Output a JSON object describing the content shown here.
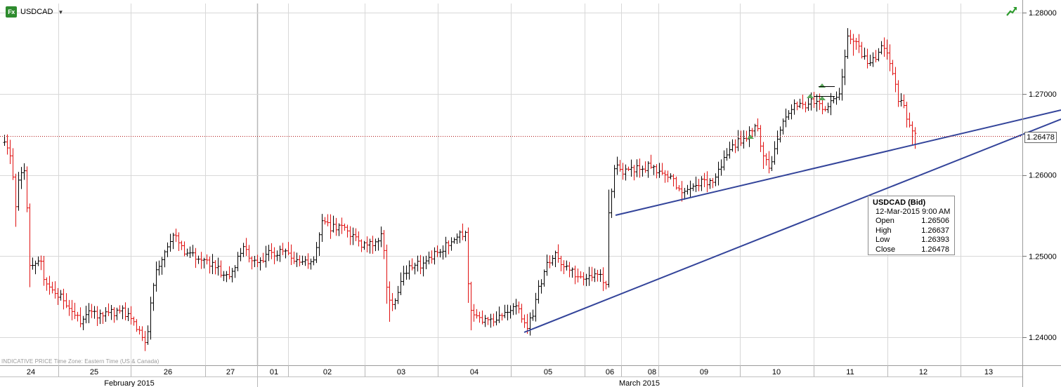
{
  "header": {
    "symbol": "USDCAD",
    "icon": "fx-icon",
    "dropdown_icon": "chevron-down-icon",
    "trend_icon": "trend-up-icon"
  },
  "footer": {
    "note": "INDICATIVE PRICE    Time Zone: Eastern Time (US & Canada)"
  },
  "tooltip": {
    "title": "USDCAD (Bid)",
    "date": "12-Mar-2015 9:00 AM",
    "rows": [
      {
        "label": "Open",
        "value": "1.26506"
      },
      {
        "label": "High",
        "value": "1.26637"
      },
      {
        "label": "Low",
        "value": "1.26393"
      },
      {
        "label": "Close",
        "value": "1.26478"
      }
    ]
  },
  "last_price": "1.26478",
  "colors": {
    "up": "#000000",
    "down": "#e01010",
    "grid": "#d8d8d8",
    "trendline": "#33449a",
    "last_price_line": "#b01818"
  },
  "chart_data": {
    "type": "ohlc",
    "y_ticks": [
      "1.24000",
      "1.25000",
      "1.26000",
      "1.27000",
      "1.28000"
    ],
    "ylim": [
      1.2365,
      1.281
    ],
    "x_day_labels": [
      "24",
      "25",
      "26",
      "27",
      "01",
      "02",
      "03",
      "04",
      "05",
      "06",
      "08",
      "09",
      "10",
      "11",
      "12",
      "13"
    ],
    "month_labels": [
      "February 2015",
      "March 2015"
    ],
    "grid": true,
    "last_price": 1.26478
  }
}
